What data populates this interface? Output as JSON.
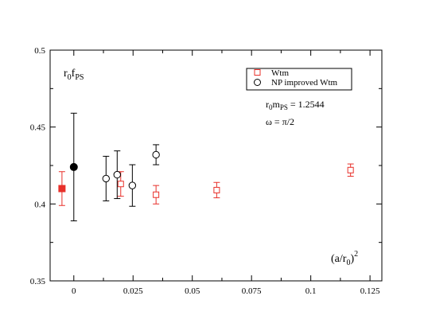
{
  "chart_data": {
    "type": "scatter",
    "title": "",
    "xlabel": "(a/r0)^2",
    "ylabel": "r0fPS",
    "xlim": [
      -0.01,
      0.13
    ],
    "ylim": [
      0.35,
      0.5
    ],
    "xticks": [
      0,
      0.025,
      0.05,
      0.075,
      0.1,
      0.125
    ],
    "xtick_labels": [
      "0",
      "0.025",
      "0.05",
      "0.075",
      "0.1",
      "0.125"
    ],
    "yticks": [
      0.35,
      0.4,
      0.45,
      0.5
    ],
    "ytick_labels": [
      "0.35",
      "0.4",
      "0.45",
      "0.5"
    ],
    "grid": false,
    "legend_position": "top-right",
    "series": [
      {
        "name": "Wtm",
        "color": "#e8302a",
        "marker": "open-square",
        "points": [
          {
            "x": 0.0198,
            "y": 0.413,
            "err": 0.008
          },
          {
            "x": 0.0347,
            "y": 0.406,
            "err": 0.006
          },
          {
            "x": 0.0603,
            "y": 0.409,
            "err": 0.005
          },
          {
            "x": 0.1168,
            "y": 0.422,
            "err": 0.004
          }
        ]
      },
      {
        "name": "NP improved Wtm",
        "color": "#000000",
        "marker": "open-circle",
        "points": [
          {
            "x": 0.0136,
            "y": 0.4165,
            "err": 0.0145
          },
          {
            "x": 0.0183,
            "y": 0.419,
            "err": 0.0155
          },
          {
            "x": 0.0247,
            "y": 0.412,
            "err": 0.0135
          },
          {
            "x": 0.0347,
            "y": 0.432,
            "err": 0.0065
          }
        ]
      },
      {
        "color": "#e8302a",
        "marker": "filled-square",
        "points": [
          {
            "x": -0.005,
            "y": 0.41,
            "err": 0.011
          }
        ]
      },
      {
        "color": "#000000",
        "marker": "filled-circle",
        "points": [
          {
            "x": 0.0,
            "y": 0.424,
            "err": 0.035
          }
        ]
      }
    ],
    "annotations": {
      "ylabel_main": "r",
      "ylabel_sub1": "0",
      "ylabel_mid": "f",
      "ylabel_sub2": "PS",
      "xlabel_main": "(a/r",
      "xlabel_sub": "0",
      "xlabel_close": ")",
      "xlabel_sup": "2",
      "mass_prefix": "r",
      "mass_sub1": "0",
      "mass_mid": "m",
      "mass_sub2": "PS",
      "mass_value": " = 1.2544",
      "omega": "ω = π/2"
    }
  }
}
